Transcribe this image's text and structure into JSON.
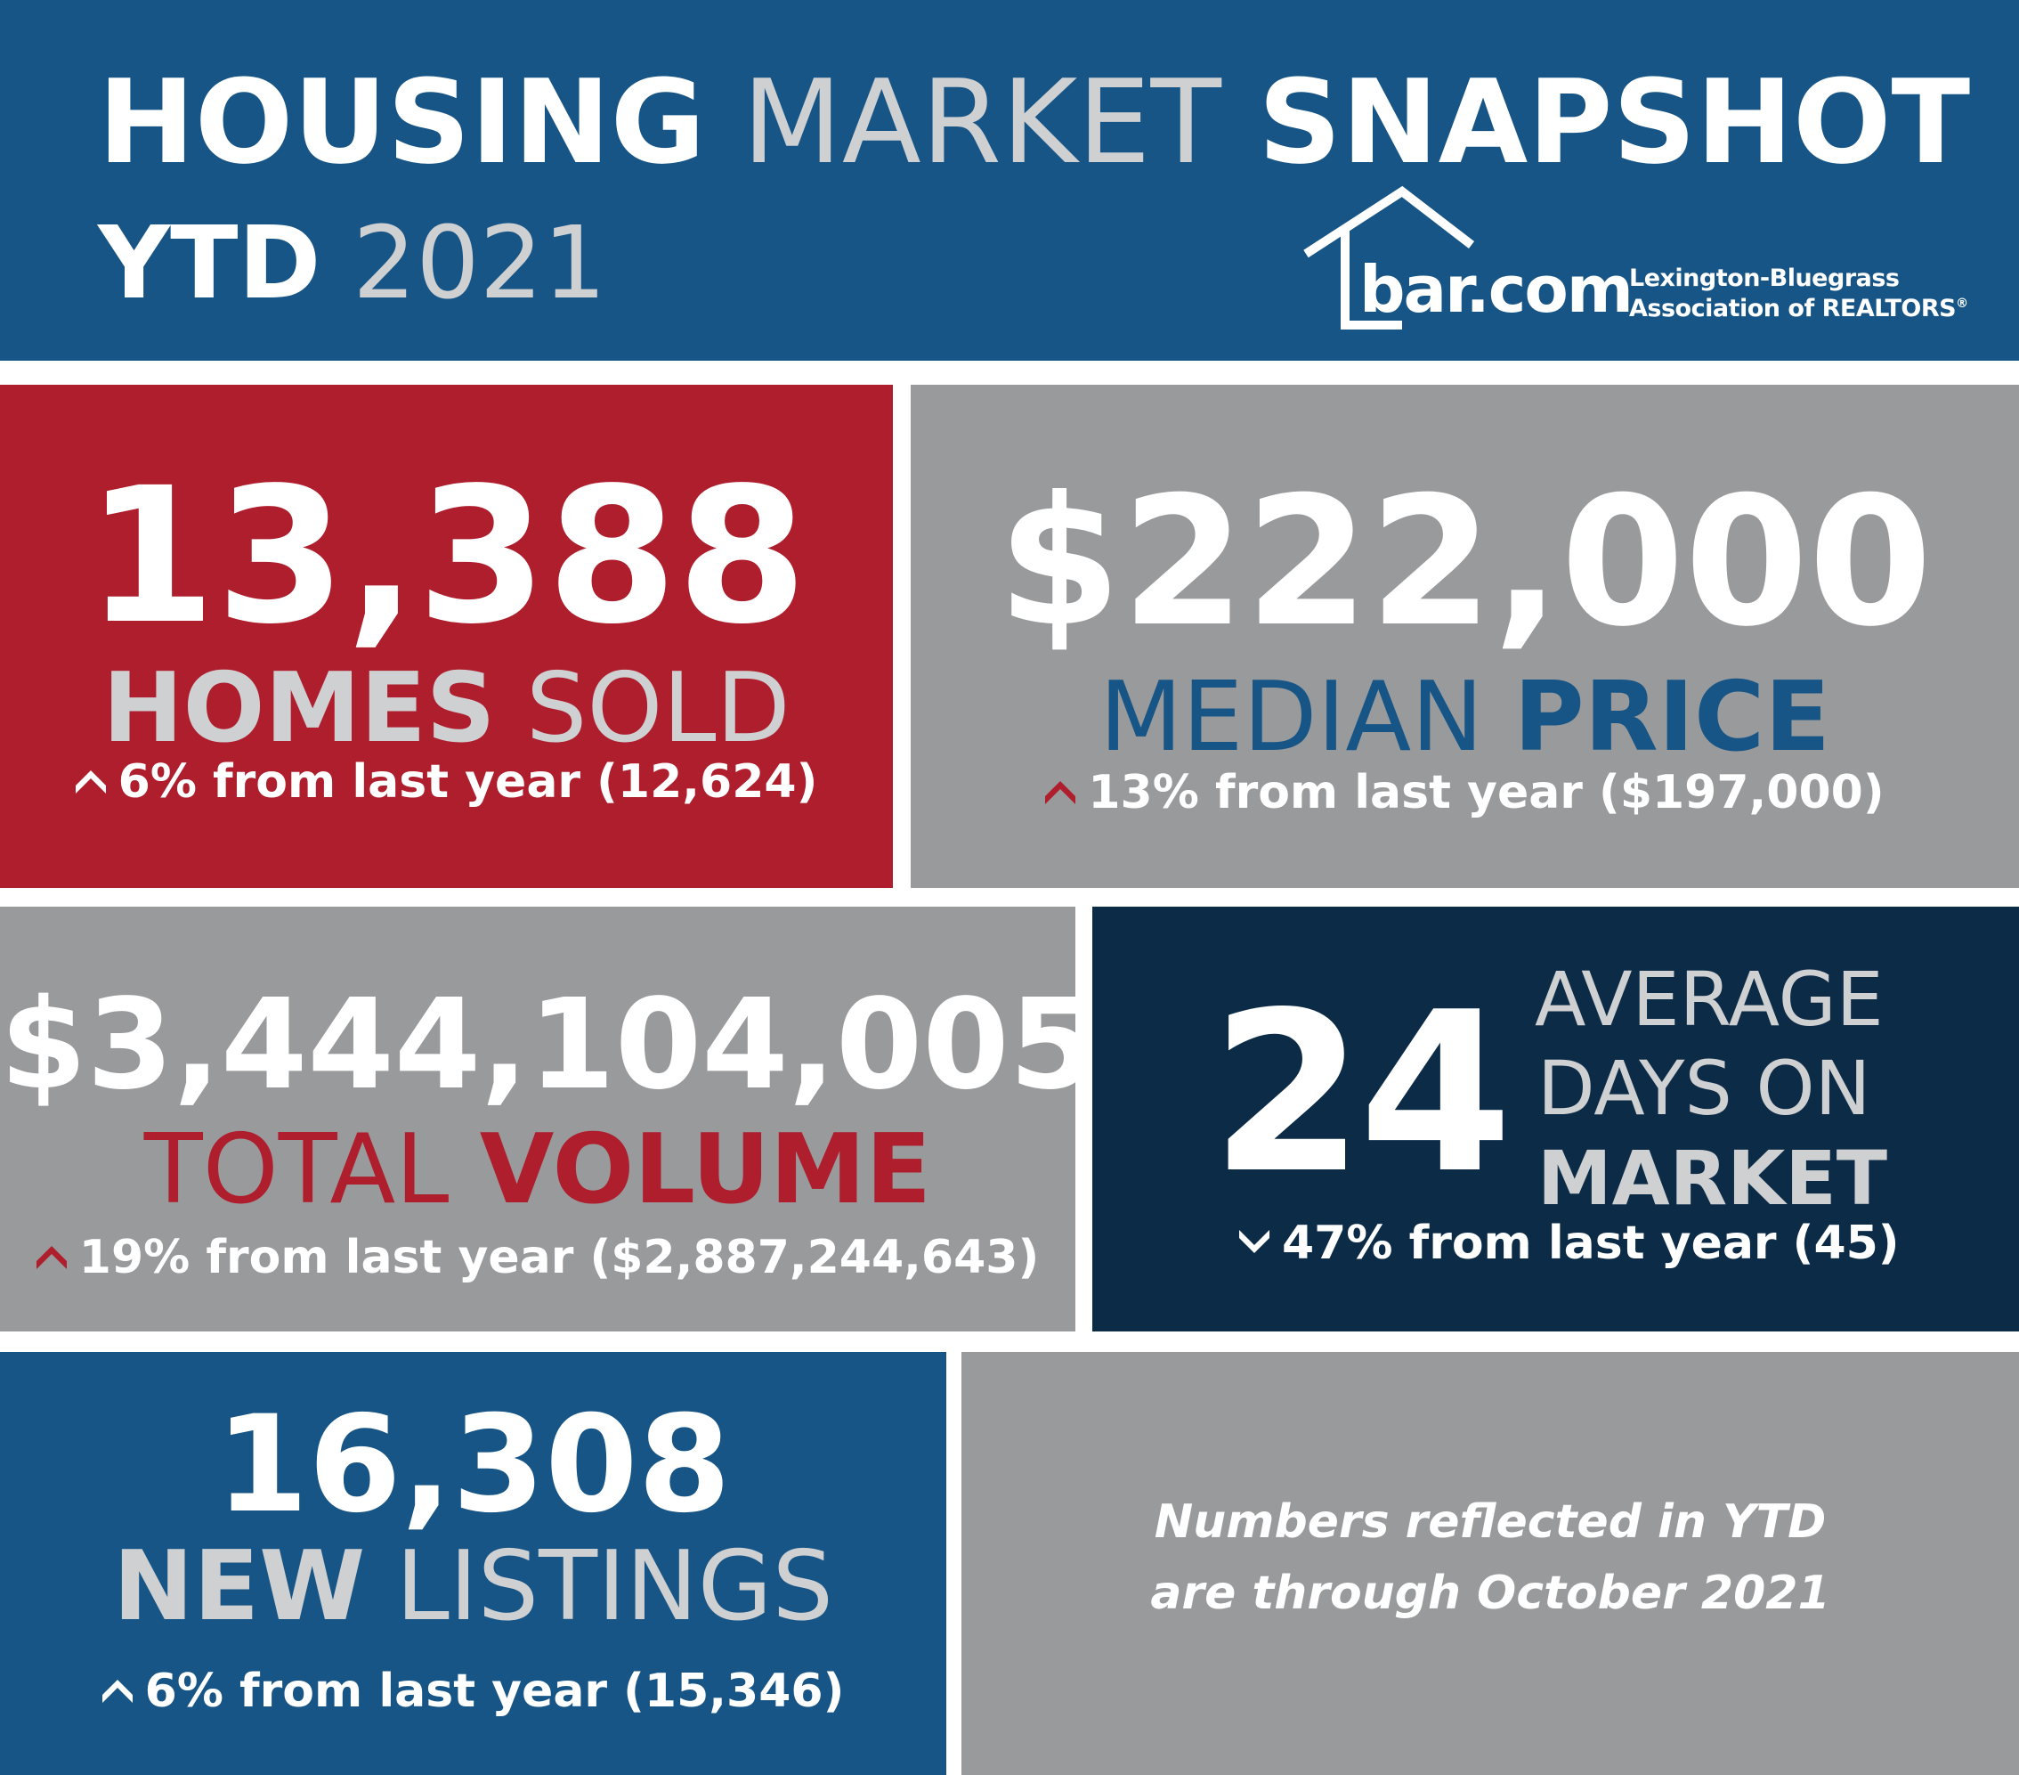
{
  "header": {
    "title_word1": "HOUSING",
    "title_word2": "MARKET",
    "title_word3": "SNAPSHOT",
    "period_word1": "YTD",
    "period_word2": "2021",
    "logo": {
      "wordmark": "bar.com",
      "org_line1": "Lexington-Bluegrass",
      "org_line2": "Association of REALTORS",
      "registered_mark": "®"
    }
  },
  "homes_sold": {
    "value": "13,388",
    "label_bold": "HOMES",
    "label_light": "SOLD",
    "direction": "up",
    "change": "6% from last year (12,624)"
  },
  "median_price": {
    "value": "$222,000",
    "label_light": "MEDIAN",
    "label_bold": "PRICE",
    "direction": "up",
    "change": "13% from last year ($197,000)"
  },
  "total_volume": {
    "value": "$3,444,104,005",
    "label_light": "TOTAL",
    "label_bold": "VOLUME",
    "direction": "up",
    "change": "19% from last year ($2,887,244,643)"
  },
  "days_on_market": {
    "value": "24",
    "label_line1": "AVERAGE",
    "label_line2": "DAYS ON",
    "label_line3": "MARKET",
    "direction": "down",
    "change": "47% from last year (45)"
  },
  "new_listings": {
    "value": "16,308",
    "label_bold": "NEW",
    "label_light": "LISTINGS",
    "direction": "up",
    "change": "6% from last year (15,346)"
  },
  "footnote": {
    "line1": "Numbers reflected in YTD",
    "line2": "are through October 2021"
  },
  "colors": {
    "blue": "#175586",
    "red": "#ae1e2d",
    "grey": "#999a9c",
    "navy": "#0c2b47",
    "light_grey_text": "#cfd0d2"
  }
}
